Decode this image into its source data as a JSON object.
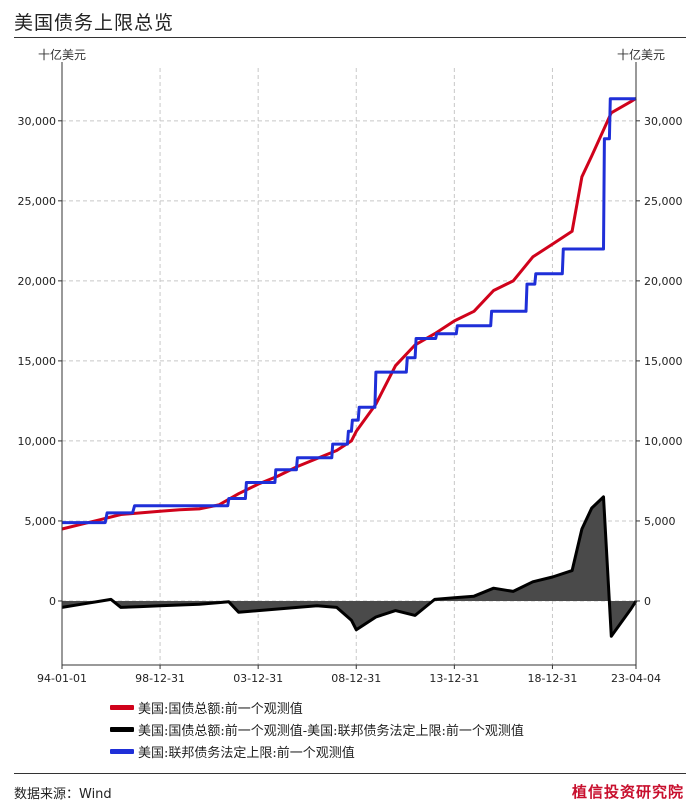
{
  "header": {
    "title": "美国债务上限总览"
  },
  "footer": {
    "source": "数据来源：Wind",
    "brand": "植信投资研究院"
  },
  "colors": {
    "total_debt": "#d0021b",
    "gap": "#000000",
    "ceiling": "#1f2fd8",
    "fill": "#4a4a4a",
    "grid": "#c8c8c8"
  },
  "chart_data": {
    "type": "line",
    "unit_left": "十亿美元",
    "unit_right": "十亿美元",
    "x_ticks": [
      "94-01-01",
      "98-12-31",
      "03-12-31",
      "08-12-31",
      "13-12-31",
      "18-12-31",
      "23-04-04"
    ],
    "x_range": [
      "1994-01-01",
      "2023-04-04"
    ],
    "y_ticks": [
      "0",
      "5,000",
      "10,000",
      "15,000",
      "20,000",
      "25,000",
      "30,000"
    ],
    "y_tick_values": [
      0,
      5000,
      10000,
      15000,
      20000,
      25000,
      30000
    ],
    "ylim": [
      -4000,
      33300
    ],
    "grid": true,
    "legend": "bottom",
    "series": [
      {
        "name": "美国:国债总额:前一个观测值",
        "x": [
          1994.0,
          1995.0,
          1996.0,
          1997.0,
          1998.0,
          1999.0,
          2000.0,
          2001.0,
          2002.0,
          2003.0,
          2004.0,
          2005.0,
          2006.0,
          2007.0,
          2008.0,
          2008.75,
          2009.0,
          2010.0,
          2011.0,
          2012.0,
          2013.0,
          2014.0,
          2015.0,
          2016.0,
          2017.0,
          2018.0,
          2019.0,
          2020.0,
          2020.5,
          2021.0,
          2022.0,
          2023.0,
          2023.26
        ],
        "values": [
          4500,
          4800,
          5100,
          5400,
          5500,
          5600,
          5700,
          5750,
          6000,
          6700,
          7300,
          7800,
          8400,
          8900,
          9400,
          10000,
          10600,
          12300,
          14700,
          16000,
          16700,
          17500,
          18100,
          19400,
          20000,
          21500,
          22300,
          23100,
          26500,
          27800,
          30500,
          31200,
          31400
        ]
      },
      {
        "name": "美国:国债总额:前一个观测值-美国:联邦债务法定上限:前一个观测值",
        "x": [
          1994.0,
          1995.0,
          1996.0,
          1996.5,
          1997.0,
          1998.0,
          1999.0,
          2000.0,
          2001.0,
          2002.0,
          2002.5,
          2003.0,
          2004.0,
          2005.0,
          2006.0,
          2007.0,
          2008.0,
          2008.75,
          2009.0,
          2010.0,
          2011.0,
          2012.0,
          2013.0,
          2014.0,
          2015.0,
          2016.0,
          2017.0,
          2018.0,
          2019.0,
          2020.0,
          2020.5,
          2021.0,
          2021.6,
          2022.0,
          2023.0,
          2023.26
        ],
        "values": [
          -400,
          -200,
          0,
          100,
          -400,
          -350,
          -300,
          -250,
          -200,
          -100,
          -50,
          -700,
          -600,
          -500,
          -400,
          -300,
          -400,
          -1200,
          -1800,
          -1000,
          -600,
          -900,
          100,
          200,
          300,
          800,
          600,
          1200,
          1500,
          1900,
          4500,
          5800,
          6500,
          -2200,
          -500,
          0
        ]
      },
      {
        "name": "美国:联邦债务法定上限:前一个观测值",
        "x": [
          1994.0,
          1996.2,
          1996.3,
          1997.6,
          1997.7,
          2002.45,
          2002.5,
          2003.35,
          2003.4,
          2004.85,
          2004.9,
          2005.95,
          2006.0,
          2007.75,
          2007.8,
          2008.55,
          2008.6,
          2008.75,
          2008.8,
          2009.1,
          2009.15,
          2009.95,
          2010.0,
          2011.55,
          2011.6,
          2012.0,
          2012.05,
          2013.05,
          2013.1,
          2014.1,
          2014.15,
          2015.85,
          2015.9,
          2017.65,
          2017.7,
          2018.1,
          2018.15,
          2019.5,
          2019.55,
          2021.6,
          2021.65,
          2021.9,
          2021.95,
          2023.26
        ],
        "values": [
          4900,
          4900,
          5500,
          5500,
          5950,
          5950,
          6400,
          6400,
          7400,
          7400,
          8200,
          8200,
          8950,
          8950,
          9800,
          9800,
          10600,
          10600,
          11300,
          11300,
          12100,
          12100,
          14300,
          14300,
          15200,
          15200,
          16400,
          16400,
          16700,
          16700,
          17200,
          17200,
          18100,
          18100,
          19800,
          19800,
          20450,
          20450,
          21990,
          21990,
          28880,
          28880,
          31380,
          31380
        ]
      }
    ]
  }
}
